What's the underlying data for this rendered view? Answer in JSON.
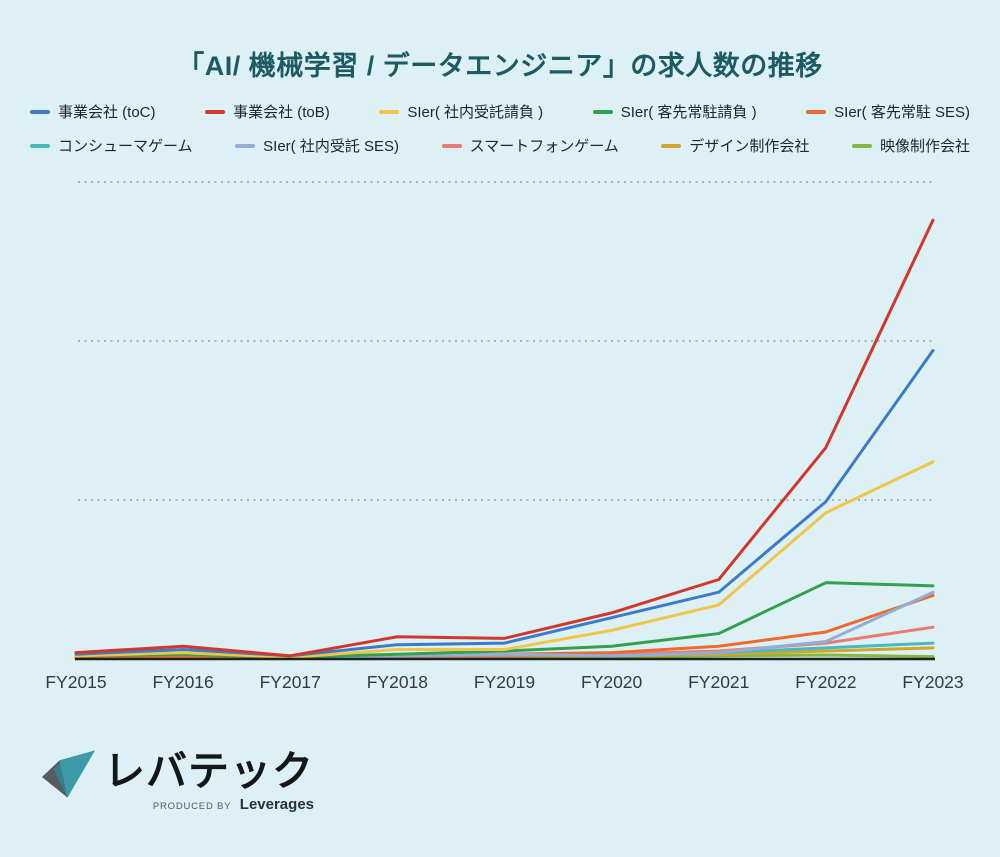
{
  "title": "「AI/ 機械学習 / データエンジニア」の求人数の推移",
  "colors": {
    "background": "#ddf0f5",
    "title": "#1e5a64",
    "axis_line": "#1b2327",
    "gridline": "#8fa3ab",
    "tick_label": "#333b40",
    "logo_teal": "#3e99a8",
    "logo_gray": "#575c60",
    "logo_text": "#141619"
  },
  "chart_data": {
    "type": "line",
    "title": "「AI/ 機械学習 / データエンジニア」の求人数の推移",
    "categories": [
      "FY2015",
      "FY2016",
      "FY2017",
      "FY2018",
      "FY2019",
      "FY2020",
      "FY2021",
      "FY2022",
      "FY2023"
    ],
    "series": [
      {
        "name": "事業会社 (toC)",
        "color": "#3c7bc7",
        "values": [
          3,
          6,
          2,
          9,
          10,
          26,
          42,
          99,
          194
        ]
      },
      {
        "name": "事業会社 (toB)",
        "color": "#d0382e",
        "values": [
          4,
          8,
          2,
          14,
          13,
          29,
          50,
          133,
          276
        ]
      },
      {
        "name": "SIer( 社内受託請負 )",
        "color": "#f0c64a",
        "values": [
          2,
          4,
          1,
          6,
          6,
          18,
          34,
          92,
          124
        ]
      },
      {
        "name": "SIer( 客先常駐請負 )",
        "color": "#33a04e",
        "values": [
          2,
          3,
          1,
          3,
          5,
          8,
          16,
          48,
          46
        ]
      },
      {
        "name": "SIer( 客先常駐 SES)",
        "color": "#ec6b2e",
        "values": [
          1,
          2,
          1,
          2,
          3,
          4,
          8,
          17,
          40
        ]
      },
      {
        "name": "コンシューマゲーム",
        "color": "#49b9bd",
        "values": [
          1,
          3,
          1,
          2,
          2,
          3,
          4,
          7,
          10
        ]
      },
      {
        "name": "SIer( 社内受託 SES)",
        "color": "#93aed6",
        "values": [
          2,
          4,
          1,
          2,
          3,
          2,
          4,
          11,
          42
        ]
      },
      {
        "name": "スマートフォンゲーム",
        "color": "#e97c72",
        "values": [
          1,
          3,
          1,
          2,
          2,
          3,
          5,
          10,
          20
        ]
      },
      {
        "name": "デザイン制作会社",
        "color": "#cfa72e",
        "values": [
          1,
          2,
          1,
          1,
          2,
          2,
          3,
          5,
          7
        ]
      },
      {
        "name": "映像制作会社",
        "color": "#85b83c",
        "values": [
          0.5,
          1,
          0.5,
          1,
          1,
          1,
          2,
          2.5,
          1.5
        ]
      }
    ],
    "xlabel": "",
    "ylabel": "",
    "ylim": [
      0,
      320
    ],
    "gridline_values": [
      100,
      200,
      300
    ],
    "y_tick_labels_shown": false,
    "grid": "horizontal-dotted",
    "legend_position": "top",
    "legend_rows": 2,
    "draw_order_bottom_to_top": [
      9,
      8,
      5,
      7,
      4,
      6,
      3,
      2,
      0,
      1
    ]
  },
  "footer": {
    "logo_text": "レバテック",
    "produced_by": "PRODUCED BY",
    "produced_by_brand": "Leverages"
  }
}
